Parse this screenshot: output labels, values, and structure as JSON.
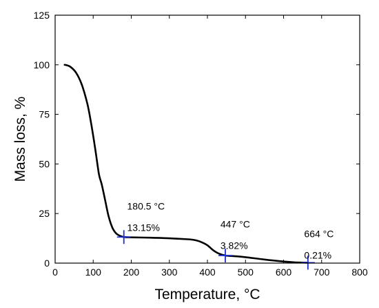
{
  "chart_data": {
    "type": "line",
    "title": "",
    "xlabel": "Temperature, °C",
    "ylabel": "Mass loss, %",
    "xlim": [
      0,
      800
    ],
    "ylim": [
      0,
      125
    ],
    "xticks": [
      0,
      100,
      200,
      300,
      400,
      500,
      600,
      700,
      800
    ],
    "yticks": [
      0,
      25,
      50,
      75,
      100,
      125
    ],
    "grid": false,
    "series": [
      {
        "color": "#000000",
        "x": [
          25,
          30,
          40,
          55,
          70,
          85,
          95,
          105,
          115,
          122,
          130,
          140,
          150,
          160,
          170,
          180.5,
          200,
          250,
          300,
          350,
          370,
          385,
          400,
          415,
          430,
          447,
          470,
          500,
          550,
          600,
          630,
          664
        ],
        "y": [
          100,
          99.8,
          99,
          96,
          90,
          80,
          70,
          58,
          45,
          40,
          33,
          24,
          18,
          15,
          13.8,
          13.15,
          13.0,
          12.8,
          12.5,
          12.0,
          11.5,
          10.5,
          9.0,
          6.5,
          4.8,
          3.82,
          3.5,
          3.0,
          1.8,
          0.8,
          0.4,
          0.21
        ]
      }
    ],
    "markers": [
      {
        "x": 180.5,
        "y": 13.15,
        "color": "#1f2fd6"
      },
      {
        "x": 447,
        "y": 3.82,
        "color": "#1f2fd6"
      },
      {
        "x": 664,
        "y": 0.21,
        "color": "#1f2fd6"
      }
    ],
    "annotations": [
      {
        "temp": "180.5 °C",
        "mass": "13.15%",
        "x": 200,
        "y": 27
      },
      {
        "temp": "447 °C",
        "mass": "3.82%",
        "x": 445,
        "y": 18
      },
      {
        "temp": "664 °C",
        "mass": "0.21%",
        "x": 665,
        "y": 13
      }
    ]
  }
}
